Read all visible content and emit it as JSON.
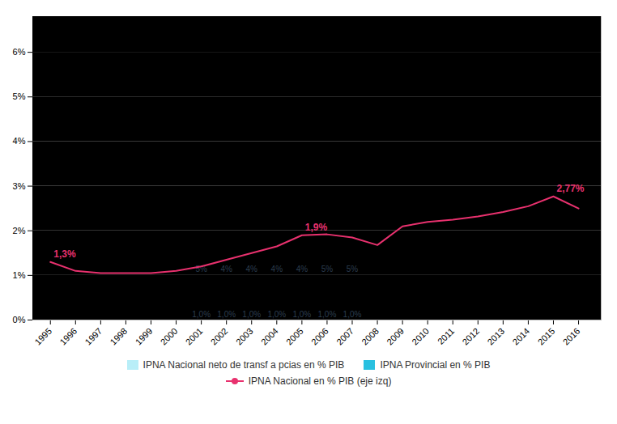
{
  "chart_data": {
    "type": "bar",
    "stacked": true,
    "grid": true,
    "data_labels": true,
    "xlim": [
      1994.3,
      2016.9
    ],
    "xticks": [
      1995,
      1996,
      1997,
      1998,
      1999,
      2000,
      2001,
      2002,
      2003,
      2004,
      2005,
      2006,
      2007,
      2008,
      2009,
      2010,
      2011,
      2012,
      2013,
      2014,
      2015,
      2016
    ],
    "ylim": [
      0,
      6.8
    ],
    "yticks": [
      {
        "value": 0,
        "label": "0%"
      },
      {
        "value": 1,
        "label": "1%"
      },
      {
        "value": 2,
        "label": "2%"
      },
      {
        "value": 3,
        "label": "3%"
      },
      {
        "value": 4,
        "label": "4%"
      },
      {
        "value": 5,
        "label": "5%"
      },
      {
        "value": 6,
        "label": "6%"
      }
    ],
    "series": [
      {
        "name": "IPNA Nacional neto de transf a pcias en % PIB",
        "type": "bar",
        "color": "#B8EEF8",
        "x": [
          2001,
          2002,
          2003,
          2004,
          2005,
          2006,
          2007
        ],
        "values": [
          1.0,
          1.0,
          1.0,
          1.0,
          1.0,
          1.0,
          1.0
        ],
        "value_labels": [
          "1,0%",
          "1,0%",
          "1,0%",
          "1,0%",
          "1,0%",
          "1,0%",
          "1,0%"
        ]
      },
      {
        "name": "IPNA Provincial en % PIB",
        "type": "bar",
        "color": "#29C0E0",
        "x": [
          2001,
          2002,
          2003,
          2004,
          2005,
          2006,
          2007
        ],
        "values": [
          4.8,
          3.75,
          3.75,
          3.75,
          3.75,
          4.8,
          4.8
        ],
        "value_labels": [
          "5%",
          "4%",
          "4%",
          "4%",
          "4%",
          "5%",
          "5%"
        ]
      },
      {
        "name": "IPNA Nacional en % PIB (eje izq)",
        "type": "line",
        "color": "#E8316E",
        "x": [
          1995,
          1996,
          1997,
          1998,
          1999,
          2000,
          2001,
          2002,
          2003,
          2004,
          2005,
          2006,
          2007,
          2008,
          2009,
          2010,
          2011,
          2012,
          2013,
          2014,
          2015,
          2016
        ],
        "values": [
          1.3,
          1.1,
          1.05,
          1.05,
          1.05,
          1.1,
          1.2,
          1.35,
          1.5,
          1.65,
          1.9,
          1.92,
          1.85,
          1.68,
          2.1,
          2.2,
          2.25,
          2.32,
          2.42,
          2.55,
          2.77,
          2.5
        ]
      }
    ],
    "annotations": [
      {
        "x": 1995,
        "y": 1.3,
        "text": "1,3%",
        "series": "IPNA Nacional en % PIB (eje izq)"
      },
      {
        "x": 2005,
        "y": 1.9,
        "text": "1,9%",
        "series": "IPNA Nacional en % PIB (eje izq)"
      },
      {
        "x": 2015,
        "y": 2.77,
        "text": "2,77%",
        "series": "IPNA Nacional en % PIB (eje izq)"
      }
    ]
  }
}
